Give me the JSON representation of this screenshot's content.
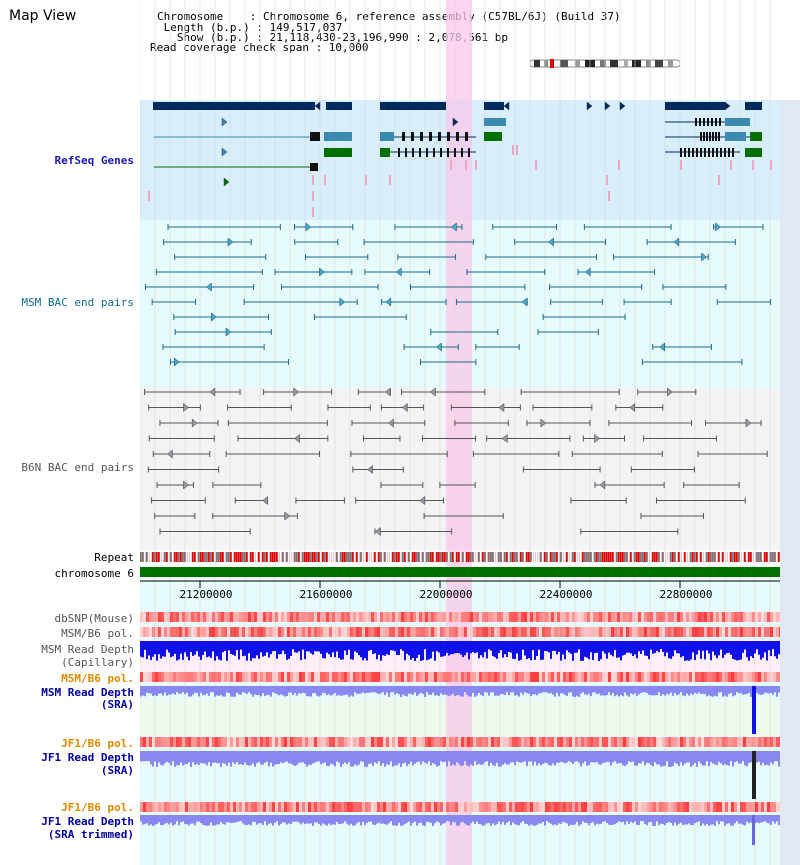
{
  "title": "Map View",
  "header": {
    "line1": "Chromosome    : Chromosome 6, reference assembly (C57BL/6J) (Build 37)",
    "line2": " Length (b.p.) : 149,517,037",
    "line3": "   Show (b.p.) : 21,118,430-23,196,990 : 2,078,561 bp",
    "line4": "Read coverage check span : 10,000"
  },
  "tracks": {
    "refseq": "RefSeq Genes",
    "msm_bac": "MSM BAC end pairs",
    "b6n_bac": "B6N BAC end pairs",
    "repeat": "Repeat",
    "chromosome": "chromosome 6",
    "dbsnp": "dbSNP(Mouse)",
    "msm_pol": "MSM/B6 pol.",
    "msm_depth_cap_1": "MSM Read Depth",
    "msm_depth_cap_2": "(Capillary)",
    "msm_pol_2": "MSM/B6 pol.",
    "msm_depth_sra_1": "MSM Read Depth",
    "msm_depth_sra_2": "(SRA)",
    "jf1_pol": "JF1/B6 pol.",
    "jf1_depth_sra_1": "JF1 Read Depth",
    "jf1_depth_sra_2": "(SRA)",
    "jf1_pol_2": "JF1/B6 pol.",
    "jf1_depth_trim_1": "JF1 Read Depth",
    "jf1_depth_trim_2": "(SRA trimmed)"
  },
  "axis": {
    "ticks": [
      "21200000",
      "21600000",
      "22000000",
      "22400000",
      "22800000"
    ]
  },
  "colors": {
    "refseq_bg": "#d8eefa",
    "msm_bg": "#e6fbfb",
    "b6n_bg": "#f3f3f3",
    "highlight": "#f8d2ec",
    "chromosome": "#007000",
    "gene_dark": "#002a5c",
    "gene_mid": "#3a8ab0",
    "gene_green": "#007000",
    "depth_capillary": "#1010e8",
    "depth_sra": "#8888f0",
    "msm_pol_label": "#e08a00",
    "jf1_pol_label": "#e08a00"
  }
}
